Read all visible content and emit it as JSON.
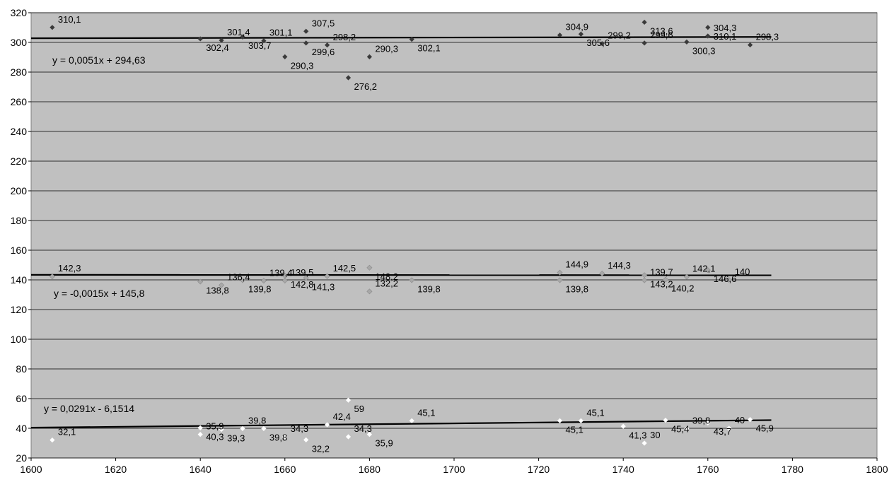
{
  "chart_data": {
    "type": "scatter",
    "xlim": [
      1600,
      1800
    ],
    "ylim": [
      20,
      320
    ],
    "x_ticks": [
      1600,
      1620,
      1640,
      1660,
      1680,
      1700,
      1720,
      1740,
      1760,
      1780,
      1800
    ],
    "y_ticks": [
      20,
      40,
      60,
      80,
      100,
      120,
      140,
      160,
      180,
      200,
      220,
      240,
      260,
      280,
      300,
      320
    ],
    "grid": "horizontal",
    "background": "#c0c0c0",
    "series": [
      {
        "color": "#3a3a3a",
        "points": [
          {
            "x": 1605,
            "y": 310.1,
            "label": "310,1"
          },
          {
            "x": 1640,
            "y": 302.4,
            "label": "302,4"
          },
          {
            "x": 1645,
            "y": 301.4,
            "label": "301,4"
          },
          {
            "x": 1650,
            "y": 303.7,
            "label": "303,7"
          },
          {
            "x": 1655,
            "y": 301.1,
            "label": "301,1"
          },
          {
            "x": 1660,
            "y": 290.3,
            "label": "290,3"
          },
          {
            "x": 1665,
            "y": 307.5,
            "label": "307,5"
          },
          {
            "x": 1665,
            "y": 299.6,
            "label": "299,6"
          },
          {
            "x": 1670,
            "y": 298.2,
            "label": "298,2"
          },
          {
            "x": 1675,
            "y": 276.2,
            "label": "276,2"
          },
          {
            "x": 1680,
            "y": 290.3,
            "label": "290,3"
          },
          {
            "x": 1690,
            "y": 302.1,
            "label": "302,1"
          },
          {
            "x": 1725,
            "y": 304.9,
            "label": "304,9"
          },
          {
            "x": 1730,
            "y": 305.6,
            "label": "305,6"
          },
          {
            "x": 1735,
            "y": 299.2,
            "label": "299,2"
          },
          {
            "x": 1745,
            "y": 313.6,
            "label": "313,6"
          },
          {
            "x": 1745,
            "y": 299.6,
            "label": "299,6"
          },
          {
            "x": 1755,
            "y": 300.3,
            "label": "300,3"
          },
          {
            "x": 1760,
            "y": 304.3,
            "label": "304,3"
          },
          {
            "x": 1760,
            "y": 310.1,
            "label": "310,1"
          },
          {
            "x": 1770,
            "y": 298.3,
            "label": "298,3"
          }
        ],
        "trendline": {
          "x": [
            1600,
            1775
          ],
          "y": [
            302.79,
            303.68
          ],
          "equation": "y = 0,0051x + 294,63"
        }
      },
      {
        "color": "#a8a8a8",
        "points": [
          {
            "x": 1605,
            "y": 142.3,
            "label": "142,3"
          },
          {
            "x": 1640,
            "y": 138.8,
            "label": "138,8"
          },
          {
            "x": 1645,
            "y": 136.4,
            "label": "136,4"
          },
          {
            "x": 1650,
            "y": 139.8,
            "label": "139,8"
          },
          {
            "x": 1655,
            "y": 139.4,
            "label": "139,4"
          },
          {
            "x": 1660,
            "y": 142.8,
            "label": "142,8"
          },
          {
            "x": 1660,
            "y": 139.5,
            "label": "139,5"
          },
          {
            "x": 1665,
            "y": 141.3,
            "label": "141,3"
          },
          {
            "x": 1670,
            "y": 142.5,
            "label": "142,5"
          },
          {
            "x": 1680,
            "y": 148.2,
            "label": "148,2"
          },
          {
            "x": 1680,
            "y": 132.2,
            "label": "132,2"
          },
          {
            "x": 1690,
            "y": 139.8,
            "label": "139,8"
          },
          {
            "x": 1725,
            "y": 144.9,
            "label": "144,9"
          },
          {
            "x": 1725,
            "y": 139.8,
            "label": "139,8"
          },
          {
            "x": 1735,
            "y": 144.3,
            "label": "144,3"
          },
          {
            "x": 1745,
            "y": 143.2,
            "label": "143,2"
          },
          {
            "x": 1745,
            "y": 139.7,
            "label": "139,7"
          },
          {
            "x": 1750,
            "y": 140.2,
            "label": "140,2"
          },
          {
            "x": 1755,
            "y": 142.1,
            "label": "142,1"
          },
          {
            "x": 1760,
            "y": 146.6,
            "label": "146,6"
          },
          {
            "x": 1765,
            "y": 140,
            "label": "140"
          }
        ],
        "trendline": {
          "x": [
            1600,
            1775
          ],
          "y": [
            143.4,
            143.14
          ],
          "equation": "y = -0,0015x + 145,8"
        }
      },
      {
        "color": "#ffffff",
        "points": [
          {
            "x": 1605,
            "y": 32.1,
            "label": "32,1"
          },
          {
            "x": 1640,
            "y": 40.3,
            "label": "40,3"
          },
          {
            "x": 1640,
            "y": 35.9,
            "label": "35,9"
          },
          {
            "x": 1645,
            "y": 39.3,
            "label": "39,3"
          },
          {
            "x": 1650,
            "y": 39.8,
            "label": "39,8"
          },
          {
            "x": 1655,
            "y": 39.8,
            "label": "39,8"
          },
          {
            "x": 1660,
            "y": 34.3,
            "label": "34,3"
          },
          {
            "x": 1665,
            "y": 32.2,
            "label": "32,2"
          },
          {
            "x": 1670,
            "y": 42.4,
            "label": "42,4"
          },
          {
            "x": 1675,
            "y": 59,
            "label": "59"
          },
          {
            "x": 1675,
            "y": 34.3,
            "label": "34,3"
          },
          {
            "x": 1680,
            "y": 35.9,
            "label": "35,9"
          },
          {
            "x": 1690,
            "y": 45.1,
            "label": "45,1"
          },
          {
            "x": 1725,
            "y": 45.1,
            "label": "45,1"
          },
          {
            "x": 1730,
            "y": 45.1,
            "label": "45,1"
          },
          {
            "x": 1740,
            "y": 41.3,
            "label": "41,3"
          },
          {
            "x": 1745,
            "y": 30,
            "label": "30"
          },
          {
            "x": 1750,
            "y": 45.4,
            "label": "45,4"
          },
          {
            "x": 1755,
            "y": 39.8,
            "label": "39,8"
          },
          {
            "x": 1760,
            "y": 43.7,
            "label": "43,7"
          },
          {
            "x": 1765,
            "y": 40,
            "label": "40"
          },
          {
            "x": 1770,
            "y": 45.9,
            "label": "45,9"
          }
        ],
        "trendline": {
          "x": [
            1600,
            1775
          ],
          "y": [
            40.41,
            45.5
          ],
          "equation": "y = 0,0291x - 6,1514"
        }
      }
    ]
  }
}
